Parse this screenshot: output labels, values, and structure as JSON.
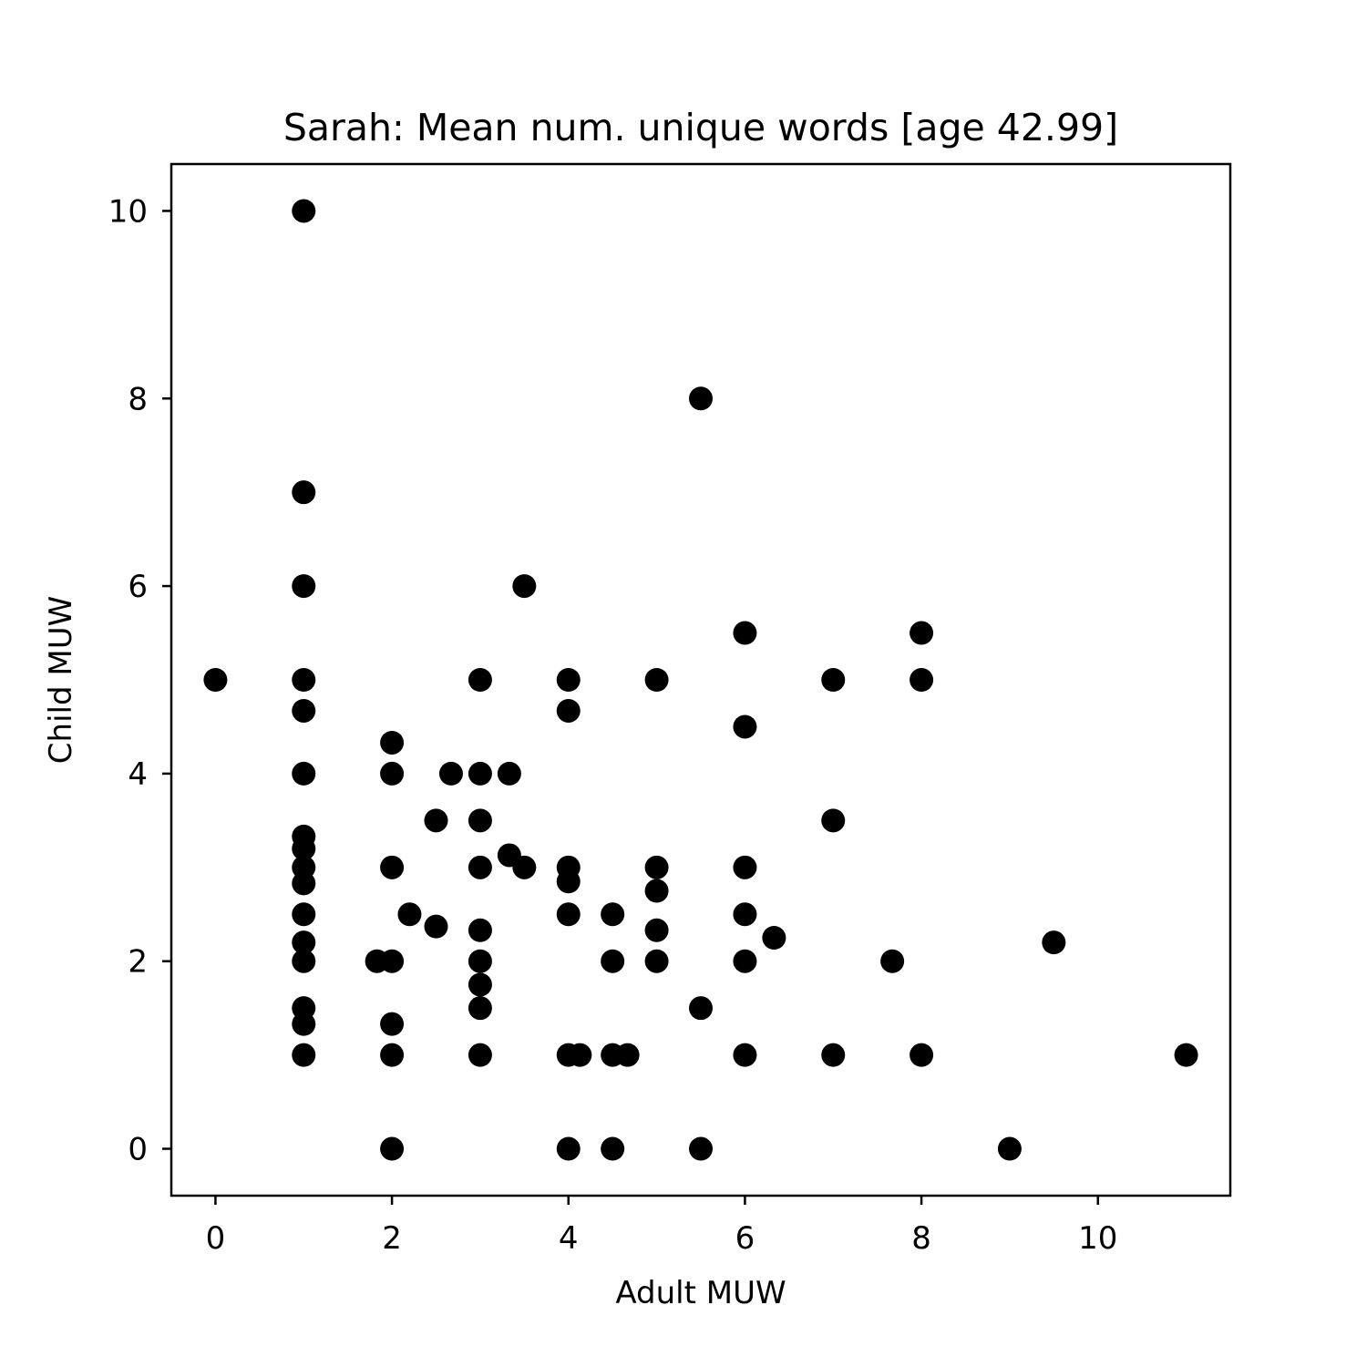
{
  "chart_data": {
    "type": "scatter",
    "title": "Sarah: Mean num. unique words [age 42.99]",
    "xlabel": "Adult MUW",
    "ylabel": "Child MUW",
    "xlim": [
      -0.5,
      11.5
    ],
    "ylim": [
      -0.5,
      10.5
    ],
    "xticks": [
      0,
      2,
      4,
      6,
      8,
      10
    ],
    "yticks": [
      0,
      2,
      4,
      6,
      8,
      10
    ],
    "grid": false,
    "marker_color": "#000000",
    "points": [
      [
        0,
        5
      ],
      [
        1,
        10
      ],
      [
        1,
        7
      ],
      [
        1,
        6
      ],
      [
        1,
        5
      ],
      [
        1,
        4.67
      ],
      [
        1,
        4
      ],
      [
        1,
        3.33
      ],
      [
        1,
        3.2
      ],
      [
        1,
        3
      ],
      [
        1,
        2.83
      ],
      [
        1,
        2.5
      ],
      [
        1,
        2.2
      ],
      [
        1,
        2
      ],
      [
        1,
        1.5
      ],
      [
        1,
        1.33
      ],
      [
        1,
        1
      ],
      [
        1.83,
        2
      ],
      [
        2,
        4.33
      ],
      [
        2,
        4
      ],
      [
        2,
        3
      ],
      [
        2,
        2
      ],
      [
        2,
        1.33
      ],
      [
        2,
        1
      ],
      [
        2,
        0
      ],
      [
        2.2,
        2.5
      ],
      [
        2.5,
        3.5
      ],
      [
        2.5,
        2.37
      ],
      [
        2.67,
        4
      ],
      [
        3,
        5
      ],
      [
        3,
        4
      ],
      [
        3,
        3.5
      ],
      [
        3,
        3
      ],
      [
        3,
        2.33
      ],
      [
        3,
        2
      ],
      [
        3,
        1.75
      ],
      [
        3,
        1.5
      ],
      [
        3,
        1
      ],
      [
        3.33,
        4
      ],
      [
        3.33,
        3.13
      ],
      [
        3.5,
        6
      ],
      [
        3.5,
        3
      ],
      [
        4,
        5
      ],
      [
        4,
        4.67
      ],
      [
        4,
        3
      ],
      [
        4,
        2.85
      ],
      [
        4,
        2.5
      ],
      [
        4,
        1
      ],
      [
        4,
        0
      ],
      [
        4.13,
        1
      ],
      [
        4.5,
        2.5
      ],
      [
        4.5,
        2
      ],
      [
        4.5,
        1
      ],
      [
        4.5,
        0
      ],
      [
        4.67,
        1
      ],
      [
        5,
        5
      ],
      [
        5,
        3
      ],
      [
        5,
        2.75
      ],
      [
        5,
        2.33
      ],
      [
        5,
        2
      ],
      [
        5.5,
        8
      ],
      [
        5.5,
        1.5
      ],
      [
        5.5,
        0
      ],
      [
        6,
        5.5
      ],
      [
        6,
        4.5
      ],
      [
        6,
        3
      ],
      [
        6,
        2.5
      ],
      [
        6,
        2
      ],
      [
        6,
        1
      ],
      [
        6.33,
        2.25
      ],
      [
        7,
        5
      ],
      [
        7,
        3.5
      ],
      [
        7,
        1
      ],
      [
        7.67,
        2
      ],
      [
        8,
        5.5
      ],
      [
        8,
        5
      ],
      [
        8,
        1
      ],
      [
        9,
        0
      ],
      [
        9.5,
        2.2
      ],
      [
        11,
        1
      ]
    ]
  }
}
